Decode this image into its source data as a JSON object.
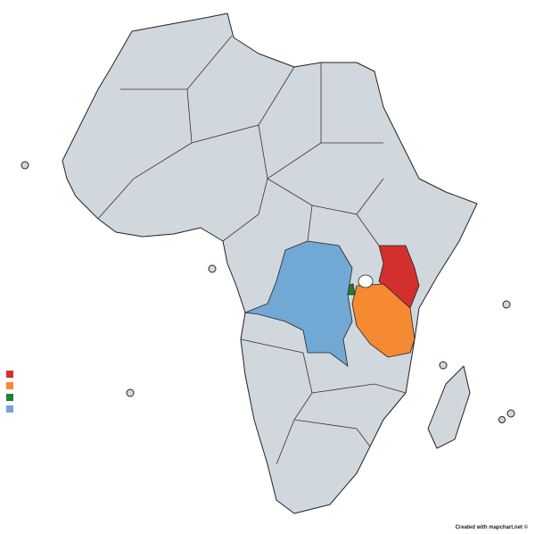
{
  "map": {
    "legend_colors": [
      "#d32f2f",
      "#f58a33",
      "#21812f",
      "#72a8d4"
    ]
  },
  "credit": "Created with mapchart.net ©"
}
